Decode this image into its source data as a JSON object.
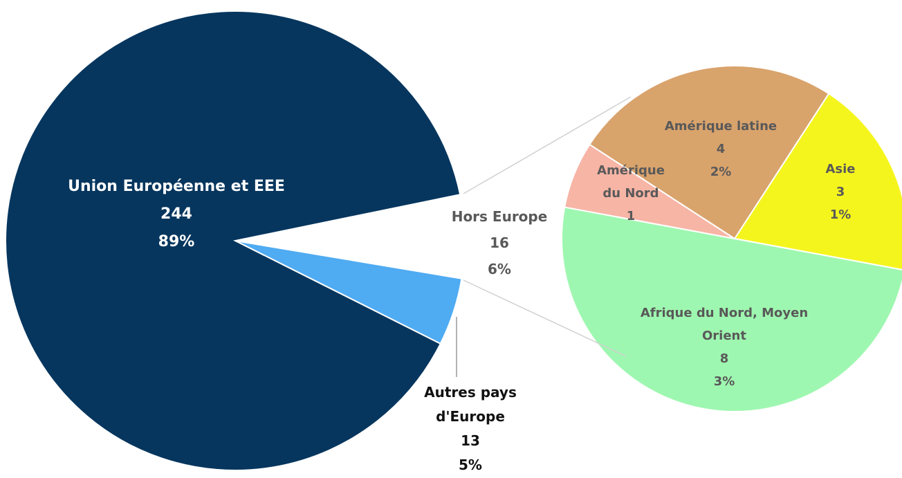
{
  "chart_data": [
    {
      "type": "pie",
      "categories": [
        "Hors Europe",
        "Autres pays d'Europe",
        "Union Européenne et EEE"
      ],
      "values": [
        16,
        13,
        244
      ],
      "percent_labels": [
        "6%",
        "5%",
        "89%"
      ],
      "colors": [
        "#ffffff",
        "#4fabf2",
        "#06365e"
      ]
    },
    {
      "type": "pie",
      "categories": [
        "Asie",
        "Afrique du Nord, Moyen Orient",
        "Amérique du Nord",
        "Amérique latine"
      ],
      "values": [
        3,
        8,
        1,
        4
      ],
      "percent_labels": [
        "1%",
        "3%",
        null,
        "2%"
      ],
      "colors": [
        "#f5f51e",
        "#9ef7b0",
        "#f7b5a6",
        "#d9a36c"
      ]
    }
  ]
}
